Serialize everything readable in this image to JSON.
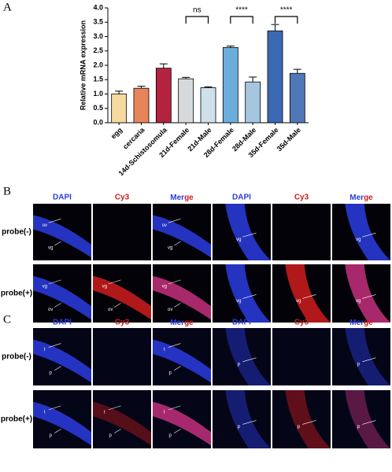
{
  "panel_a": {
    "label": "A",
    "chart_data": {
      "type": "bar",
      "y_label": "Relative mRNA expression",
      "categories": [
        "egg",
        "cercaria",
        "14d-Schistosomula",
        "21d-Female",
        "21d-Male",
        "28d-Female",
        "28d-Male",
        "35d-Female",
        "35d-Male"
      ],
      "values": [
        1.0,
        1.2,
        1.9,
        1.53,
        1.22,
        2.62,
        1.42,
        3.2,
        1.72
      ],
      "errors": [
        0.1,
        0.07,
        0.15,
        0.05,
        0.03,
        0.05,
        0.17,
        0.22,
        0.14
      ],
      "colors": [
        "#f6d99c",
        "#e8845a",
        "#b3223f",
        "#d6dadd",
        "#cfe0ea",
        "#6caedb",
        "#a6c6df",
        "#3c69b4",
        "#5078b8"
      ],
      "ylim": [
        0,
        4.0
      ],
      "yticks": [
        {
          "value": 0,
          "label": "0.0"
        },
        {
          "value": 0.5,
          "label": "0.5"
        },
        {
          "value": 1,
          "label": "1.0"
        },
        {
          "value": 1.5,
          "label": "1.5"
        },
        {
          "value": 2,
          "label": "2.0"
        },
        {
          "value": 2.5,
          "label": "2.5"
        },
        {
          "value": 3,
          "label": "3.0"
        },
        {
          "value": 3.5,
          "label": "3.5"
        },
        {
          "value": 4,
          "label": "4.0"
        }
      ],
      "significance": [
        {
          "text": "ns",
          "between": [
            "21d-Female",
            "21d-Male"
          ]
        },
        {
          "text": "****",
          "between": [
            "28d-Female",
            "28d-Male"
          ]
        },
        {
          "text": "****",
          "between": [
            "35d-Female",
            "35d-Male"
          ]
        }
      ]
    }
  },
  "panel_b": {
    "label": "B",
    "headers": [
      "DAPI",
      "Cy3",
      "Merge",
      "DAPI",
      "Cy3",
      "Merge"
    ],
    "rows": [
      {
        "label": "probe(-)",
        "cells": [
          [
            "ov",
            "vg"
          ],
          [],
          [
            "ov",
            "vg"
          ],
          [
            "vg"
          ],
          [],
          [
            "vg"
          ]
        ]
      },
      {
        "label": "probe(+)",
        "cells": [
          [
            "vg",
            "ov"
          ],
          [
            "vg",
            "ov"
          ],
          [
            "vg",
            "ov"
          ],
          [
            "vg"
          ],
          [
            "vg"
          ],
          [
            "vg"
          ]
        ]
      }
    ]
  },
  "panel_c": {
    "label": "C",
    "headers": [
      "DAPI",
      "Cy3",
      "Merge",
      "DAPI",
      "Cy3",
      "Merge"
    ],
    "rows": [
      {
        "label": "probe(-)",
        "cells": [
          [
            "t",
            "p"
          ],
          [],
          [
            "t",
            "p"
          ],
          [
            "p"
          ],
          [],
          [
            "p"
          ]
        ]
      },
      {
        "label": "probe(+)",
        "cells": [
          [
            "t",
            "p"
          ],
          [
            "t",
            "p"
          ],
          [
            "t",
            "p"
          ],
          [
            "p"
          ],
          [
            "p"
          ],
          [
            "p"
          ]
        ]
      }
    ]
  }
}
